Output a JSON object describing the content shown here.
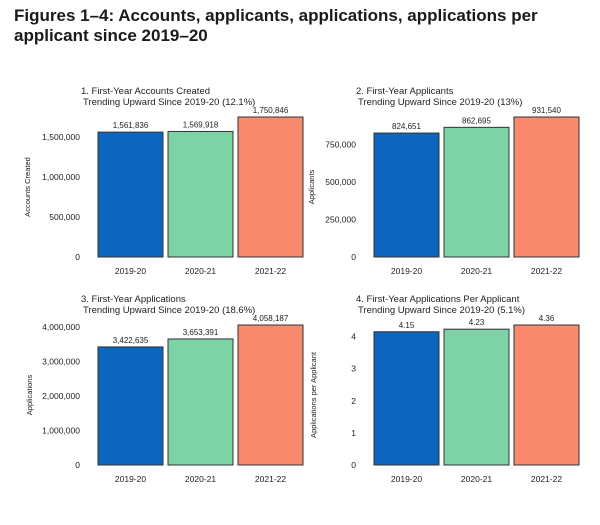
{
  "figure": {
    "title": "Figures 1–4: Accounts, applicants, applications, applications per applicant since 2019–20"
  },
  "colors": {
    "bar_2019": "#0c66be",
    "bar_2020": "#7ed3a6",
    "bar_2021": "#f98a6c",
    "border": "#333333"
  },
  "chart_data": [
    {
      "type": "bar",
      "title": "1. First-Year Accounts Created",
      "subtitle": "Trending Upward Since 2019-20 (12.1%)",
      "xlabel": "",
      "ylabel": "Accounts Created",
      "categories": [
        "2019-20",
        "2020-21",
        "2021-22"
      ],
      "values": [
        1561836,
        1569918,
        1750846
      ],
      "data_labels": [
        "1,561,836",
        "1,569,918",
        "1,750,846"
      ],
      "ylim": [
        0,
        1750846
      ],
      "yticks": [
        0,
        500000,
        1000000,
        1500000
      ],
      "ytick_labels": [
        "0",
        "500,000",
        "1,000,000",
        "1,500,000"
      ]
    },
    {
      "type": "bar",
      "title": "2. First-Year Applicants",
      "subtitle": "Trending Upward Since 2019-20 (13%)",
      "xlabel": "",
      "ylabel": "Applicants",
      "categories": [
        "2019-20",
        "2020-21",
        "2021-22"
      ],
      "values": [
        824651,
        862695,
        931540
      ],
      "data_labels": [
        "824,651",
        "862,695",
        "931,540"
      ],
      "ylim": [
        0,
        931540
      ],
      "yticks": [
        0,
        250000,
        500000,
        750000
      ],
      "ytick_labels": [
        "0",
        "250,000",
        "500,000",
        "750,000"
      ]
    },
    {
      "type": "bar",
      "title": "3. First-Year Applications",
      "subtitle": "Trending Upward Since 2019-20 (18.6%)",
      "xlabel": "",
      "ylabel": "Applications",
      "categories": [
        "2019-20",
        "2020-21",
        "2021-22"
      ],
      "values": [
        3422635,
        3653391,
        4058187
      ],
      "data_labels": [
        "3,422,635",
        "3,653,391",
        "4,058,187"
      ],
      "ylim": [
        0,
        4058187
      ],
      "yticks": [
        0,
        1000000,
        2000000,
        3000000,
        4000000
      ],
      "ytick_labels": [
        "0",
        "1,000,000",
        "2,000,000",
        "3,000,000",
        "4,000,000"
      ]
    },
    {
      "type": "bar",
      "title": "4. First-Year Applications Per Applicant",
      "subtitle": "Trending Upward Since 2019-20 (5.1%)",
      "xlabel": "",
      "ylabel": "Applications per Applicant",
      "categories": [
        "2019-20",
        "2020-21",
        "2021-22"
      ],
      "values": [
        4.15,
        4.23,
        4.36
      ],
      "data_labels": [
        "4.15",
        "4.23",
        "4.36"
      ],
      "ylim": [
        0,
        4.36
      ],
      "yticks": [
        0,
        1,
        2,
        3,
        4
      ],
      "ytick_labels": [
        "0",
        "1",
        "2",
        "3",
        "4"
      ]
    }
  ]
}
